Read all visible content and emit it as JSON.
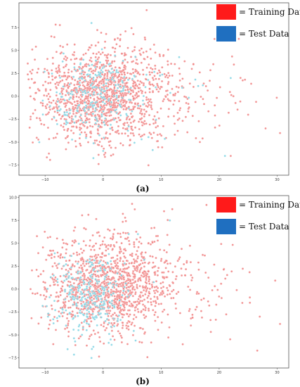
{
  "colors": {
    "training": "#f08080",
    "test": "#7fd3e3",
    "legend_training": "#ff1a1a",
    "legend_test": "#1f6fc0"
  },
  "chart_data": [
    {
      "type": "scatter",
      "panel_label": "(a)",
      "xlim": [
        -14.5,
        32
      ],
      "ylim": [
        -8.6,
        10.2
      ],
      "x_ticks": [
        -10,
        0,
        10,
        20,
        30
      ],
      "y_ticks": [
        -7.5,
        -5.0,
        -2.5,
        0.0,
        2.5,
        5.0,
        7.5
      ],
      "x_tick_labels": [
        "−10",
        "0",
        "10",
        "20",
        "30"
      ],
      "y_tick_labels": [
        "−7.5",
        "−5.0",
        "−2.5",
        "0.0",
        "2.5",
        "5.0",
        "7.5"
      ],
      "grid": false,
      "legend_position": "top-right",
      "series": [
        {
          "name": "= Training Data",
          "color": "#f08080",
          "approx_points": 1400,
          "center": [
            -0.5,
            0.3
          ],
          "spread": [
            5.5,
            2.7
          ],
          "x_range": [
            -13,
            31
          ],
          "y_range": [
            -7.7,
            9.4
          ],
          "sample_points": [
            [
              7.5,
              9.4
            ],
            [
              -12.5,
              0
            ],
            [
              30.5,
              -4
            ],
            [
              28,
              -3.5
            ],
            [
              25,
              -2
            ],
            [
              22,
              -6.5
            ],
            [
              19,
              3.5
            ],
            [
              -12.5,
              -2.5
            ]
          ]
        },
        {
          "name": "= Test Data",
          "color": "#7fd3e3",
          "approx_points": 260,
          "center": [
            -2,
            0
          ],
          "spread": [
            4,
            2.2
          ],
          "x_range": [
            -12.5,
            22
          ],
          "y_range": [
            -7.5,
            8
          ],
          "sample_points": [
            [
              -2,
              8
            ],
            [
              -11,
              -5
            ],
            [
              22,
              2
            ],
            [
              21,
              -6.5
            ]
          ]
        }
      ]
    },
    {
      "type": "scatter",
      "panel_label": "(b)",
      "xlim": [
        -14.5,
        32
      ],
      "ylim": [
        -8.6,
        10.2
      ],
      "x_ticks": [
        -10,
        0,
        10,
        20,
        30
      ],
      "y_ticks": [
        -7.5,
        -5.0,
        -2.5,
        0.0,
        2.5,
        5.0,
        7.5,
        10.0
      ],
      "x_tick_labels": [
        "−10",
        "0",
        "10",
        "20",
        "30"
      ],
      "y_tick_labels": [
        "−7.5",
        "−5.0",
        "−2.5",
        "0.0",
        "2.5",
        "5.0",
        "7.5",
        "10.0"
      ],
      "grid": false,
      "legend_position": "top-right",
      "series": [
        {
          "name": "= Training Data",
          "color": "#f08080",
          "approx_points": 1400,
          "center": [
            0,
            0.5
          ],
          "spread": [
            5.5,
            2.7
          ],
          "x_range": [
            -13,
            31
          ],
          "y_range": [
            -7.7,
            9.3
          ],
          "sample_points": [
            [
              5,
              9.3
            ],
            [
              10.5,
              8.5
            ],
            [
              30.5,
              -3.8
            ],
            [
              27,
              -3
            ],
            [
              24,
              -1.5
            ],
            [
              -12.5,
              0
            ]
          ]
        },
        {
          "name": "= Test Data",
          "color": "#7fd3e3",
          "approx_points": 300,
          "center": [
            -3,
            -0.8
          ],
          "spread": [
            2.8,
            2.1
          ],
          "x_range": [
            -11,
            12
          ],
          "y_range": [
            -7.5,
            7.5
          ],
          "sample_points": [
            [
              11.5,
              7.5
            ],
            [
              -9.5,
              -3
            ],
            [
              -2,
              -7.5
            ],
            [
              6,
              6
            ]
          ]
        }
      ]
    }
  ]
}
